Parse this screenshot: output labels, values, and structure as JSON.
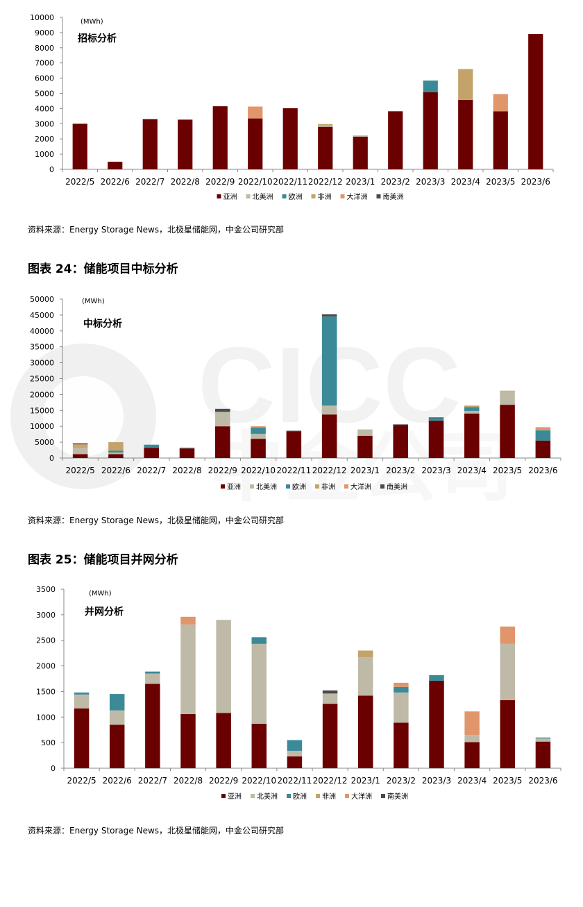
{
  "colors": {
    "亚洲": "#6b0000",
    "北美洲": "#bfbaa8",
    "欧洲": "#3a8a98",
    "非洲": "#c4a36a",
    "大洋洲": "#e0956a",
    "南美洲": "#4a4a4a",
    "axis": "#888888"
  },
  "chart_data": [
    {
      "type": "bar",
      "stacked": true,
      "title": "招标分析",
      "unit": "(MWh)",
      "ylim": [
        0,
        10000
      ],
      "yticks": [
        "0",
        "1000",
        "2000",
        "3000",
        "4000",
        "5000",
        "6000",
        "7000",
        "8000",
        "9000",
        "10000"
      ],
      "categories": [
        "2022/5",
        "2022/6",
        "2022/7",
        "2022/8",
        "2022/9",
        "2022/10",
        "2022/11",
        "2022/12",
        "2023/1",
        "2023/2",
        "2023/3",
        "2023/4",
        "2023/5",
        "2023/6"
      ],
      "series": [
        {
          "name": "亚洲",
          "values": [
            3000,
            500,
            3300,
            3270,
            4150,
            3350,
            4020,
            2800,
            2150,
            3820,
            5070,
            4570,
            3820,
            8900
          ]
        },
        {
          "name": "北美洲",
          "values": [
            0,
            0,
            0,
            0,
            0,
            0,
            0,
            100,
            80,
            0,
            0,
            0,
            0,
            0
          ]
        },
        {
          "name": "欧洲",
          "values": [
            0,
            0,
            0,
            0,
            0,
            0,
            0,
            0,
            0,
            0,
            770,
            0,
            0,
            0
          ]
        },
        {
          "name": "非洲",
          "values": [
            0,
            0,
            0,
            0,
            0,
            0,
            0,
            80,
            0,
            0,
            0,
            2030,
            0,
            0
          ]
        },
        {
          "name": "大洋洲",
          "values": [
            0,
            0,
            0,
            0,
            0,
            780,
            0,
            0,
            0,
            0,
            0,
            0,
            1130,
            0
          ]
        },
        {
          "name": "南美洲",
          "values": [
            0,
            0,
            0,
            0,
            0,
            0,
            0,
            0,
            0,
            0,
            0,
            0,
            0,
            0
          ]
        }
      ],
      "legend": [
        "亚洲",
        "北美洲",
        "欧洲",
        "非洲",
        "大洋洲",
        "南美洲"
      ],
      "legend_position": "bottom",
      "grid": false
    },
    {
      "type": "bar",
      "stacked": true,
      "title": "中标分析",
      "unit": "(MWh)",
      "ylim": [
        0,
        50000
      ],
      "yticks": [
        "0",
        "5000",
        "10000",
        "15000",
        "20000",
        "25000",
        "30000",
        "35000",
        "40000",
        "45000",
        "50000"
      ],
      "categories": [
        "2022/5",
        "2022/6",
        "2022/7",
        "2022/8",
        "2022/9",
        "2022/10",
        "2022/11",
        "2022/12",
        "2023/1",
        "2023/2",
        "2023/3",
        "2023/4",
        "2023/5",
        "2023/6"
      ],
      "series": [
        {
          "name": "亚洲",
          "values": [
            1200,
            1200,
            3200,
            3000,
            10000,
            6000,
            8300,
            13700,
            7000,
            10400,
            11700,
            14000,
            16700,
            5500
          ]
        },
        {
          "name": "北美洲",
          "values": [
            2000,
            500,
            0,
            0,
            4500,
            1600,
            0,
            2800,
            2000,
            0,
            0,
            800,
            4200,
            0
          ]
        },
        {
          "name": "欧洲",
          "values": [
            0,
            600,
            1000,
            0,
            0,
            1900,
            0,
            28000,
            0,
            0,
            800,
            1200,
            0,
            3200
          ]
        },
        {
          "name": "非洲",
          "values": [
            700,
            2700,
            0,
            0,
            0,
            0,
            0,
            0,
            0,
            0,
            0,
            500,
            300,
            0
          ]
        },
        {
          "name": "大洋洲",
          "values": [
            400,
            0,
            0,
            0,
            0,
            500,
            0,
            0,
            0,
            0,
            0,
            0,
            0,
            1000
          ]
        },
        {
          "name": "南美洲",
          "values": [
            300,
            0,
            0,
            200,
            1000,
            0,
            300,
            700,
            0,
            200,
            300,
            0,
            0,
            0
          ]
        }
      ],
      "legend": [
        "亚洲",
        "北美洲",
        "欧洲",
        "非洲",
        "大洋洲",
        "南美洲"
      ],
      "legend_position": "bottom",
      "grid": false
    },
    {
      "type": "bar",
      "stacked": true,
      "title": "并网分析",
      "unit": "(MWh)",
      "ylim": [
        0,
        3500
      ],
      "yticks": [
        "0",
        "500",
        "1000",
        "1500",
        "2000",
        "2500",
        "3000",
        "3500"
      ],
      "categories": [
        "2022/5",
        "2022/6",
        "2022/7",
        "2022/8",
        "2022/9",
        "2022/10",
        "2022/11",
        "2022/12",
        "2023/1",
        "2023/2",
        "2023/3",
        "2023/4",
        "2023/5",
        "2023/6"
      ],
      "series": [
        {
          "name": "亚洲",
          "values": [
            1170,
            850,
            1650,
            1060,
            1080,
            870,
            230,
            1260,
            1420,
            890,
            1710,
            510,
            1330,
            520
          ]
        },
        {
          "name": "北美洲",
          "values": [
            270,
            280,
            200,
            1750,
            1820,
            1560,
            110,
            200,
            750,
            590,
            0,
            140,
            1100,
            60
          ]
        },
        {
          "name": "欧洲",
          "values": [
            40,
            320,
            40,
            0,
            0,
            130,
            210,
            0,
            0,
            110,
            110,
            0,
            0,
            20
          ]
        },
        {
          "name": "非洲",
          "values": [
            0,
            0,
            0,
            0,
            0,
            0,
            0,
            0,
            130,
            0,
            0,
            0,
            0,
            0
          ]
        },
        {
          "name": "大洋洲",
          "values": [
            0,
            0,
            0,
            150,
            0,
            0,
            0,
            0,
            0,
            80,
            0,
            460,
            340,
            0
          ]
        },
        {
          "name": "南美洲",
          "values": [
            0,
            0,
            0,
            0,
            0,
            0,
            0,
            60,
            0,
            0,
            0,
            0,
            0,
            0
          ]
        }
      ],
      "legend": [
        "亚洲",
        "北美洲",
        "欧洲",
        "非洲",
        "大洋洲",
        "南美洲"
      ],
      "legend_position": "bottom",
      "grid": false
    }
  ],
  "sources": [
    "资料来源：Energy Storage News，北极星储能网，中金公司研究部",
    "资料来源：Energy Storage News，北极星储能网，中金公司研究部",
    "资料来源：Energy Storage News，北极星储能网，中金公司研究部"
  ],
  "figure_titles": [
    "图表 24：储能项目中标分析",
    "图表 25：储能项目并网分析"
  ],
  "watermark": {
    "latin": "CICC",
    "chinese": "中金公司"
  }
}
